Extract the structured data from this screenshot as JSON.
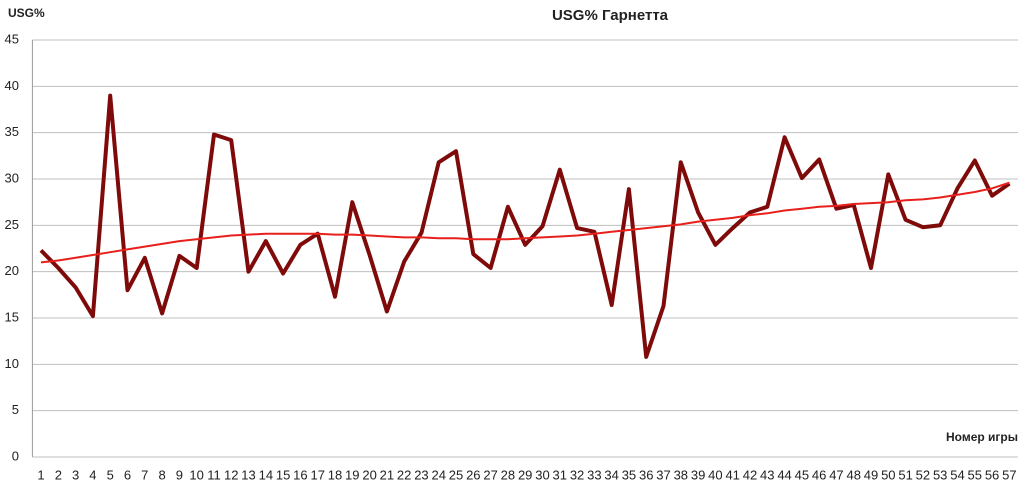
{
  "chart_data": {
    "type": "line",
    "title": "USG% Гарнетта",
    "y_label": "USG%",
    "x_label": "Номер игры",
    "categories": [
      1,
      2,
      3,
      4,
      5,
      6,
      7,
      8,
      9,
      10,
      11,
      12,
      13,
      14,
      15,
      16,
      17,
      18,
      19,
      20,
      21,
      22,
      23,
      24,
      25,
      26,
      27,
      28,
      29,
      30,
      31,
      32,
      33,
      34,
      35,
      36,
      37,
      38,
      39,
      40,
      41,
      42,
      43,
      44,
      45,
      46,
      47,
      48,
      49,
      50,
      51,
      52,
      53,
      54,
      55,
      56,
      57
    ],
    "series": [
      {
        "color": "#7f0a0a",
        "values": [
          22.3,
          20.4,
          18.3,
          15.2,
          39.0,
          18.0,
          21.5,
          15.5,
          21.7,
          20.4,
          34.8,
          34.2,
          20.0,
          23.3,
          19.8,
          22.9,
          24.1,
          17.3,
          27.5,
          21.8,
          15.7,
          21.1,
          24.2,
          31.8,
          33.0,
          21.9,
          20.4,
          27.0,
          22.9,
          24.9,
          31.0,
          24.7,
          24.3,
          16.4,
          28.9,
          10.8,
          16.3,
          31.8,
          26.4,
          22.9,
          24.7,
          26.4,
          27.0,
          34.5,
          30.1,
          32.1,
          26.8,
          27.2,
          20.4,
          30.5,
          25.6,
          24.8,
          25.0,
          29.0,
          32.0,
          28.2,
          29.5
        ]
      },
      {
        "color": "#e8201c",
        "values": [
          21.0,
          21.2,
          21.5,
          21.8,
          22.1,
          22.4,
          22.7,
          23.0,
          23.3,
          23.5,
          23.7,
          23.9,
          24.0,
          24.1,
          24.1,
          24.1,
          24.1,
          24.0,
          24.0,
          23.9,
          23.8,
          23.7,
          23.7,
          23.6,
          23.6,
          23.5,
          23.5,
          23.5,
          23.6,
          23.7,
          23.8,
          23.9,
          24.1,
          24.3,
          24.5,
          24.7,
          24.9,
          25.1,
          25.4,
          25.6,
          25.8,
          26.1,
          26.3,
          26.6,
          26.8,
          27.0,
          27.1,
          27.3,
          27.4,
          27.5,
          27.7,
          27.8,
          28.0,
          28.3,
          28.6,
          29.0,
          29.6
        ]
      }
    ],
    "ylim": [
      0,
      45
    ],
    "yticks": [
      0,
      5,
      10,
      15,
      20,
      25,
      30,
      35,
      40,
      45
    ],
    "grid": true
  }
}
